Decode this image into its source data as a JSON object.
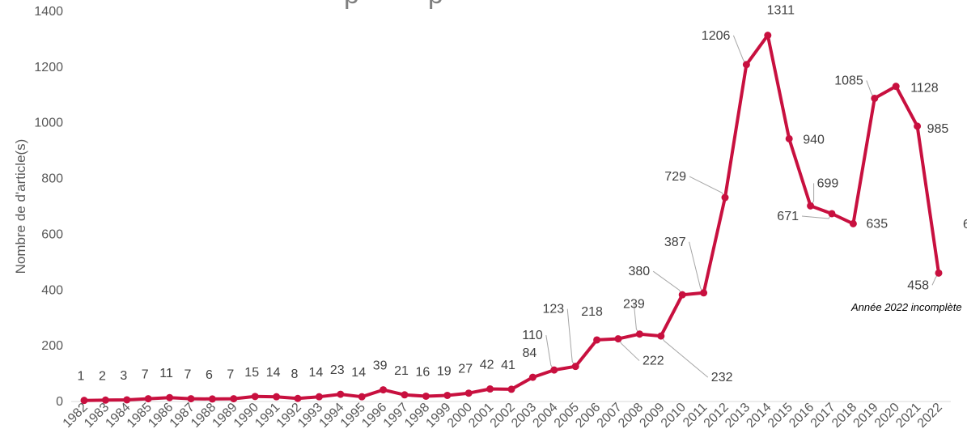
{
  "chart_data": {
    "type": "line",
    "title_fragment": "p         p",
    "ylabel": "Nombre de d'article(s)",
    "ylim": [
      0,
      1400
    ],
    "yticks": [
      "0",
      "200",
      "400",
      "600",
      "800",
      "1000",
      "1200",
      "1400"
    ],
    "grid": false,
    "categories": [
      "1982",
      "1983",
      "1984",
      "1985",
      "1986",
      "1987",
      "1988",
      "1989",
      "1990",
      "1991",
      "1992",
      "1993",
      "1994",
      "1995",
      "1996",
      "1997",
      "1998",
      "1999",
      "2000",
      "2001",
      "2002",
      "2003",
      "2004",
      "2005",
      "2006",
      "2007",
      "2008",
      "2009",
      "2010",
      "2011",
      "2012",
      "2013",
      "2014",
      "2015",
      "2016",
      "2017",
      "2018",
      "2019",
      "2020",
      "2021",
      "2022"
    ],
    "series": [
      {
        "color": "#C8103F",
        "values": [
          1,
          2,
          3,
          7,
          11,
          7,
          6,
          7,
          15,
          14,
          8,
          14,
          23,
          14,
          39,
          21,
          16,
          19,
          27,
          42,
          41,
          84,
          110,
          123,
          218,
          222,
          239,
          232,
          380,
          387,
          729,
          1206,
          1311,
          940,
          699,
          671,
          635,
          1085,
          1128,
          985,
          458
        ]
      }
    ],
    "annotation": "Année 2022 incomplète",
    "edge_fragment": "6"
  }
}
